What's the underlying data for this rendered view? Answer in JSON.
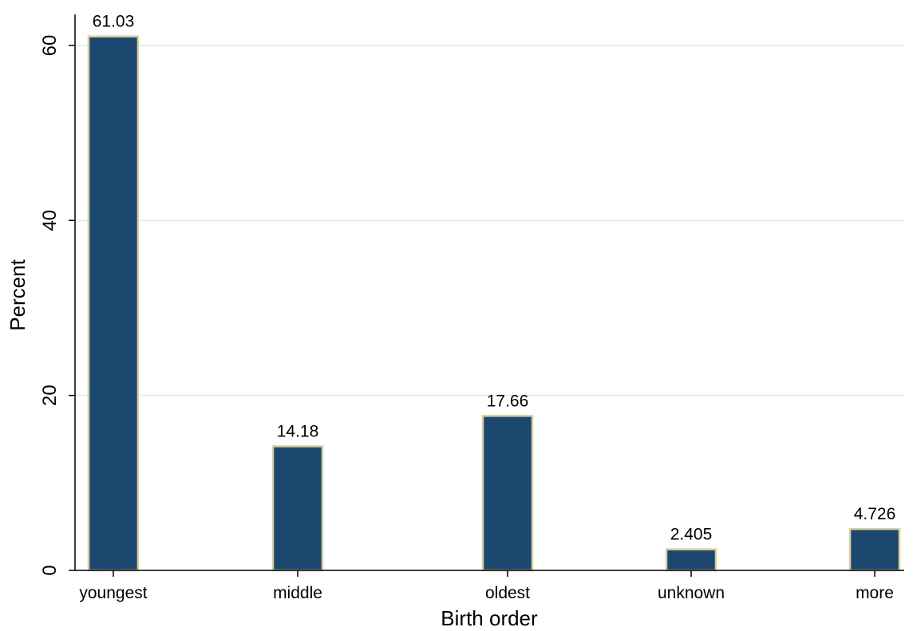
{
  "chart_data": {
    "type": "bar",
    "title": "",
    "xlabel": "Birth order",
    "ylabel": "Percent",
    "categories": [
      "youngest",
      "middle",
      "oldest",
      "unknown",
      "more"
    ],
    "values": [
      61.03,
      14.18,
      17.66,
      2.405,
      4.726
    ],
    "value_labels": [
      "61.03",
      "14.18",
      "17.66",
      "2.405",
      "4.726"
    ],
    "ylim": [
      0,
      63.5
    ],
    "yticks": [
      0,
      20,
      40,
      60
    ],
    "ytick_labels": [
      "0",
      "20",
      "40",
      "60"
    ],
    "grid": "horizontal",
    "colors": {
      "bar_fill": "#1c4870",
      "bar_outline": "#d8d0a0",
      "grid": "#e6edf0",
      "axis": "#000000"
    }
  }
}
